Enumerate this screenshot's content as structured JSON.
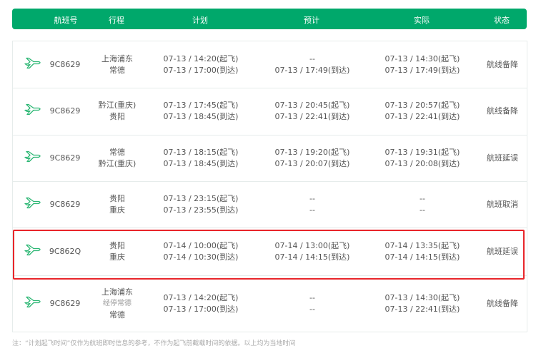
{
  "header": {
    "flight_no": "航班号",
    "route": "行程",
    "planned": "计划",
    "estimated": "预计",
    "actual": "实际",
    "status": "状态"
  },
  "colors": {
    "accent": "#00a86b",
    "highlight": "#e8252a"
  },
  "rows": [
    {
      "flight": "9C8629",
      "route": [
        "上海浦东",
        "常德"
      ],
      "planned": [
        "07-13 / 14:20(起飞)",
        "07-13 / 17:00(到达)"
      ],
      "estimated": [
        "--",
        "07-13 / 17:49(到达)"
      ],
      "actual": [
        "07-13 / 14:30(起飞)",
        "07-13 / 17:49(到达)"
      ],
      "status": "航线备降"
    },
    {
      "flight": "9C8629",
      "route": [
        "黔江(重庆)",
        "贵阳"
      ],
      "planned": [
        "07-13 / 17:45(起飞)",
        "07-13 / 18:45(到达)"
      ],
      "estimated": [
        "07-13 / 20:45(起飞)",
        "07-13 / 22:41(到达)"
      ],
      "actual": [
        "07-13 / 20:57(起飞)",
        "07-13 / 22:41(到达)"
      ],
      "status": "航线备降"
    },
    {
      "flight": "9C8629",
      "route": [
        "常德",
        "黔江(重庆)"
      ],
      "planned": [
        "07-13 / 18:15(起飞)",
        "07-13 / 18:45(到达)"
      ],
      "estimated": [
        "07-13 / 19:20(起飞)",
        "07-13 / 20:07(到达)"
      ],
      "actual": [
        "07-13 / 19:31(起飞)",
        "07-13 / 20:08(到达)"
      ],
      "status": "航班延误"
    },
    {
      "flight": "9C8629",
      "route": [
        "贵阳",
        "重庆"
      ],
      "planned": [
        "07-13 / 23:15(起飞)",
        "07-13 / 23:55(到达)"
      ],
      "estimated": [
        "--",
        "--"
      ],
      "actual": [
        "--",
        "--"
      ],
      "status": "航班取消"
    },
    {
      "flight": "9C862Q",
      "route": [
        "贵阳",
        "重庆"
      ],
      "planned": [
        "07-14 / 10:00(起飞)",
        "07-14 / 10:30(到达)"
      ],
      "estimated": [
        "07-14 / 13:00(起飞)",
        "07-14 / 14:15(到达)"
      ],
      "actual": [
        "07-14 / 13:35(起飞)",
        "07-14 / 14:15(到达)"
      ],
      "status": "航班延误"
    },
    {
      "flight": "9C8629",
      "route": [
        "上海浦东",
        "经停常德",
        "常德"
      ],
      "planned": [
        "07-13 / 14:20(起飞)",
        "07-13 / 17:00(到达)"
      ],
      "estimated": [
        "--",
        "--"
      ],
      "actual": [
        "07-13 / 14:30(起飞)",
        "07-13 / 22:41(到达)"
      ],
      "status": "航线备降"
    }
  ],
  "note": "注：“计划起飞时间”仅作为航班即时信息的参考，不作为起飞前截载时间的依据。以上均为当地时间"
}
